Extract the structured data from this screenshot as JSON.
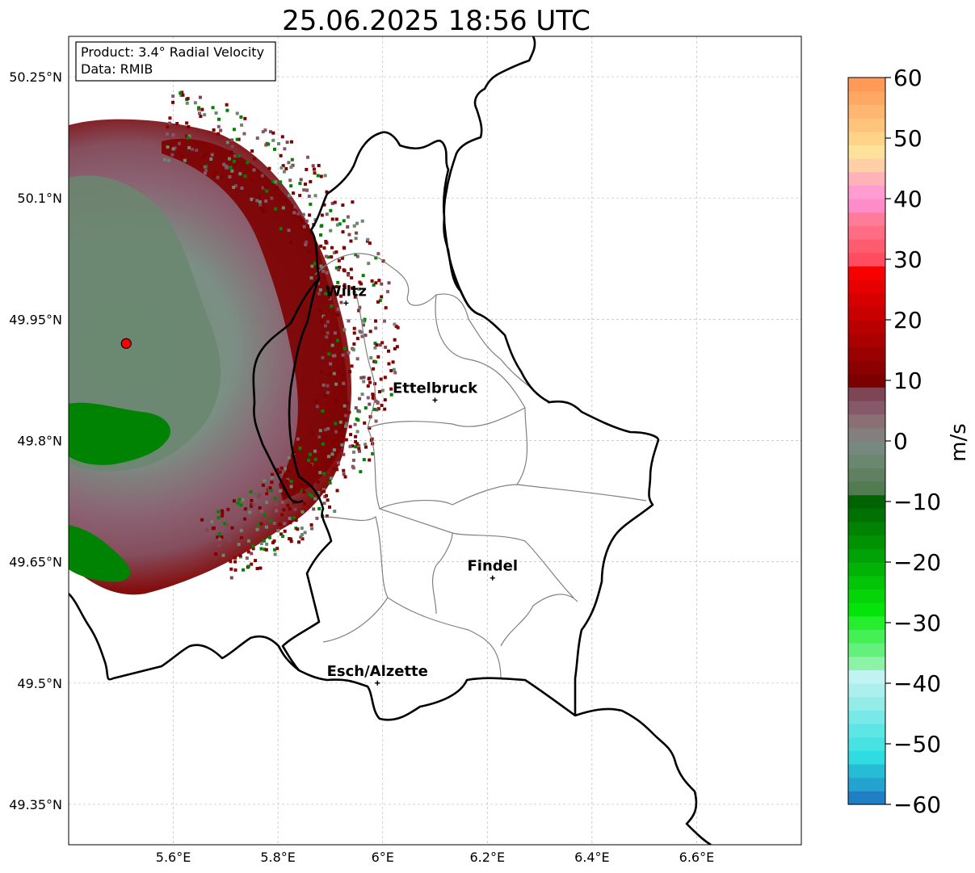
{
  "title": "25.06.2025 18:56 UTC",
  "info_box": {
    "product": "Product: 3.4° Radial Velocity",
    "data": "Data: RMIB"
  },
  "axes": {
    "lon_ticks": [
      {
        "value": 5.6,
        "label": "5.6°E"
      },
      {
        "value": 5.8,
        "label": "5.8°E"
      },
      {
        "value": 6.0,
        "label": "6°E"
      },
      {
        "value": 6.2,
        "label": "6.2°E"
      },
      {
        "value": 6.4,
        "label": "6.4°E"
      },
      {
        "value": 6.6,
        "label": "6.6°E"
      }
    ],
    "lat_ticks": [
      {
        "value": 50.25,
        "label": "50.25°N"
      },
      {
        "value": 50.1,
        "label": "50.1°N"
      },
      {
        "value": 49.95,
        "label": "49.95°N"
      },
      {
        "value": 49.8,
        "label": "49.8°N"
      },
      {
        "value": 49.65,
        "label": "49.65°N"
      },
      {
        "value": 49.5,
        "label": "49.5°N"
      },
      {
        "value": 49.35,
        "label": "49.35°N"
      }
    ],
    "lon_range": [
      5.4,
      6.8
    ],
    "lat_range": [
      49.3,
      50.3
    ]
  },
  "cities": [
    {
      "name": "Wiltz",
      "lon": 5.93,
      "lat": 49.97
    },
    {
      "name": "Ettelbruck",
      "lon": 6.1,
      "lat": 49.85
    },
    {
      "name": "Findel",
      "lon": 6.21,
      "lat": 49.63
    },
    {
      "name": "Esch/Alzette",
      "lon": 5.99,
      "lat": 49.5
    }
  ],
  "radar_site": {
    "lon": 5.51,
    "lat": 49.92,
    "color": "#ff0000"
  },
  "colorbar": {
    "label": "m/s",
    "min": -60,
    "max": 60,
    "ticks": [
      {
        "value": 60,
        "label": "60"
      },
      {
        "value": 50,
        "label": "50"
      },
      {
        "value": 40,
        "label": "40"
      },
      {
        "value": 30,
        "label": "30"
      },
      {
        "value": 20,
        "label": "20"
      },
      {
        "value": 10,
        "label": "10"
      },
      {
        "value": 0,
        "label": "0"
      },
      {
        "value": -10,
        "label": "−10"
      },
      {
        "value": -20,
        "label": "−20"
      },
      {
        "value": -30,
        "label": "−30"
      },
      {
        "value": -40,
        "label": "−40"
      },
      {
        "value": -50,
        "label": "−50"
      },
      {
        "value": -60,
        "label": "−60"
      }
    ],
    "colors": [
      "#1f7fc4",
      "#24a3cf",
      "#26bcd6",
      "#2fdce1",
      "#47e3e3",
      "#5ee5e6",
      "#79e8e8",
      "#94ece9",
      "#abf0ee",
      "#c0f3f2",
      "#8ef2a6",
      "#64f07c",
      "#45f055",
      "#25ee2e",
      "#05e40a",
      "#04d408",
      "#03c407",
      "#02b306",
      "#01a205",
      "#019204",
      "#008203",
      "#007102",
      "#006301",
      "#527b52",
      "#5f8162",
      "#6a8770",
      "#75897e",
      "#827f7e",
      "#8a6f74",
      "#85596a",
      "#7e4555",
      "#7d0000",
      "#8b0000",
      "#9b0000",
      "#aa0000",
      "#b80000",
      "#c80000",
      "#d60000",
      "#e60000",
      "#f60000",
      "#ff4c5e",
      "#ff5c70",
      "#ff6c83",
      "#ff7c98",
      "#ff8cc8",
      "#ff9cd0",
      "#ffb3b8",
      "#ffd0a8",
      "#ffe29a",
      "#ffd488",
      "#ffc47c",
      "#ffb670",
      "#ffa864",
      "#ff9a58"
    ]
  },
  "colors": {
    "border": "#000000",
    "canton_border": "#808080",
    "grid": "#bbbbbb"
  }
}
